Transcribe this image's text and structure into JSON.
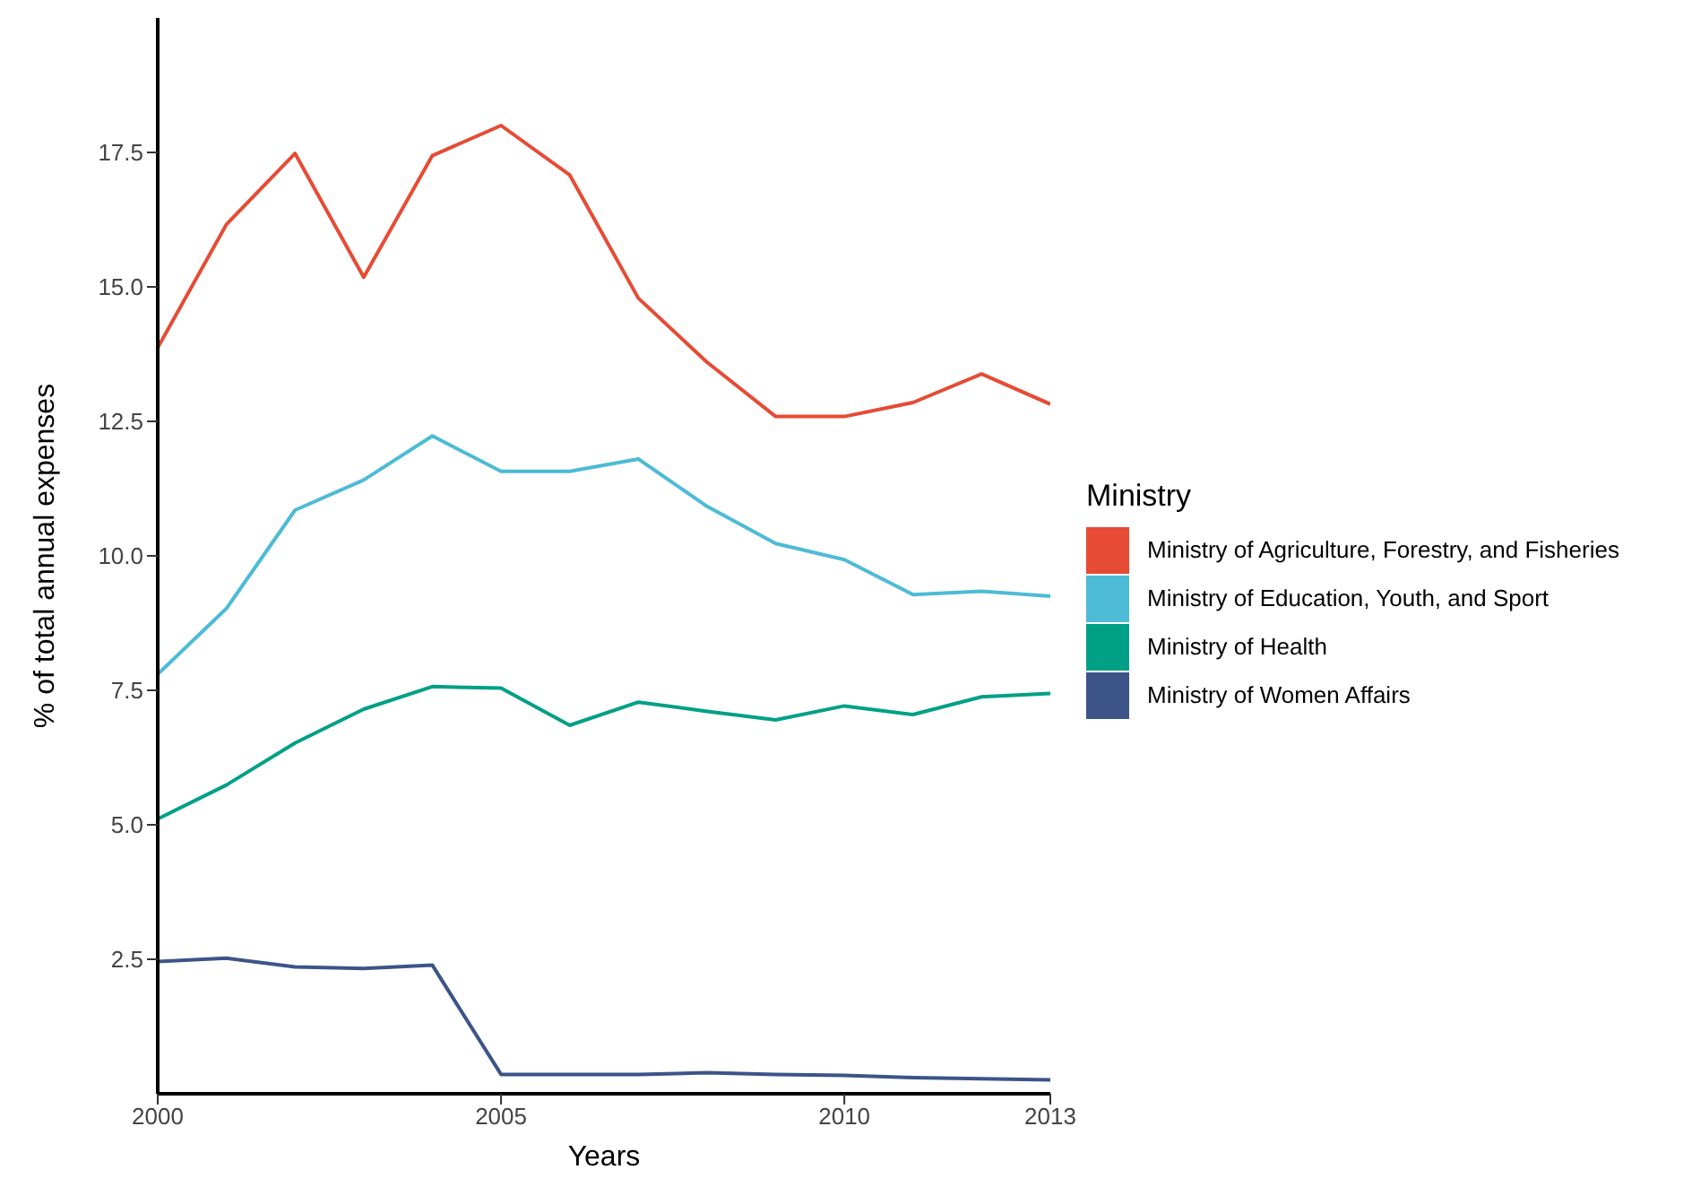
{
  "chart_data": {
    "type": "line",
    "xlabel": "Years",
    "ylabel": "% of total annual expenses",
    "legend_title": "Ministry",
    "legend": "right",
    "grid": false,
    "marker": "none",
    "line_style": "solid",
    "x": [
      2000,
      2001,
      2002,
      2003,
      2004,
      2005,
      2006,
      2007,
      2008,
      2009,
      2010,
      2011,
      2012,
      2013
    ],
    "xlim": [
      2000,
      2013
    ],
    "xticks": [
      2000,
      2005,
      2010,
      2013
    ],
    "ylim": [
      0,
      20
    ],
    "yticks": [
      {
        "value": 2.5,
        "label": "2.5"
      },
      {
        "value": 5,
        "label": "5.0"
      },
      {
        "value": 7.5,
        "label": "7.5"
      },
      {
        "value": 10,
        "label": "10.0"
      },
      {
        "value": 12.5,
        "label": "12.5"
      },
      {
        "value": 15,
        "label": "15.0"
      },
      {
        "value": 17.5,
        "label": "17.5"
      }
    ],
    "series": [
      {
        "name": "Ministry of Agriculture, Forestry, and Fisheries",
        "color": "#e64b35",
        "values": [
          13.87,
          16.16,
          17.48,
          15.18,
          17.44,
          18.0,
          17.08,
          14.79,
          13.6,
          12.59,
          12.59,
          12.85,
          13.38,
          12.82
        ]
      },
      {
        "name": "Ministry of Education, Youth, and Sport",
        "color": "#4dbbd5",
        "values": [
          7.8,
          9.02,
          10.85,
          11.41,
          12.23,
          11.57,
          11.57,
          11.8,
          10.92,
          10.23,
          9.93,
          9.28,
          9.34,
          9.25
        ]
      },
      {
        "name": "Ministry of Health",
        "color": "#00a087",
        "values": [
          5.11,
          5.74,
          6.52,
          7.15,
          7.57,
          7.54,
          6.85,
          7.28,
          7.11,
          6.95,
          7.21,
          7.05,
          7.38,
          7.44
        ]
      },
      {
        "name": "Ministry of Women Affairs",
        "color": "#3c5488",
        "values": [
          2.46,
          2.52,
          2.36,
          2.33,
          2.39,
          0.36,
          0.36,
          0.36,
          0.39,
          0.36,
          0.34,
          0.3,
          0.28,
          0.26
        ]
      }
    ]
  }
}
